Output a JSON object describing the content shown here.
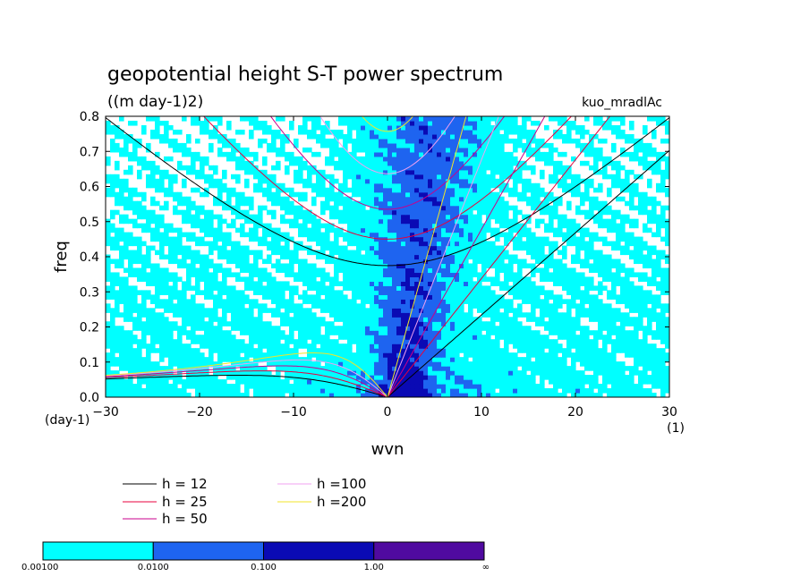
{
  "chart_data": {
    "type": "heatmap",
    "title": "geopotential height S-T power spectrum",
    "subtitle": "((m day-1)2)",
    "run_label": "kuo_mradlAc",
    "xlabel": "wvn",
    "xunit": "(1)",
    "ylabel": "freq",
    "yunit": "(day-1)",
    "xlim": [
      -30,
      30
    ],
    "ylim": [
      0,
      0.8
    ],
    "xticks": [
      -30,
      -20,
      -10,
      0,
      10,
      20,
      30
    ],
    "yticks": [
      0.0,
      0.1,
      0.2,
      0.3,
      0.4,
      0.5,
      0.6,
      0.7,
      0.8
    ],
    "xtick_labels": [
      "−30",
      "−20",
      "−10",
      "0",
      "10",
      "20",
      "30"
    ],
    "ytick_labels": [
      "0.0",
      "0.1",
      "0.2",
      "0.3",
      "0.4",
      "0.5",
      "0.6",
      "0.7",
      "0.8"
    ],
    "colorbar": {
      "bounds": [
        "0.00100",
        "0.0100",
        "0.100",
        "1.00",
        "∞"
      ],
      "colors": [
        "#00ffff",
        "#1e64f0",
        "#0a0ab4",
        "#500aa0"
      ]
    },
    "dispersion_curves": [
      {
        "label": "h = 12",
        "h": 12,
        "color": "#000000"
      },
      {
        "label": "h = 25",
        "h": 25,
        "color": "#e8003c"
      },
      {
        "label": "h = 50",
        "h": 50,
        "color": "#c8008c"
      },
      {
        "label": "h =100",
        "h": 100,
        "color": "#f0a0f0"
      },
      {
        "label": "h =200",
        "h": 200,
        "color": "#f0e628"
      }
    ]
  }
}
